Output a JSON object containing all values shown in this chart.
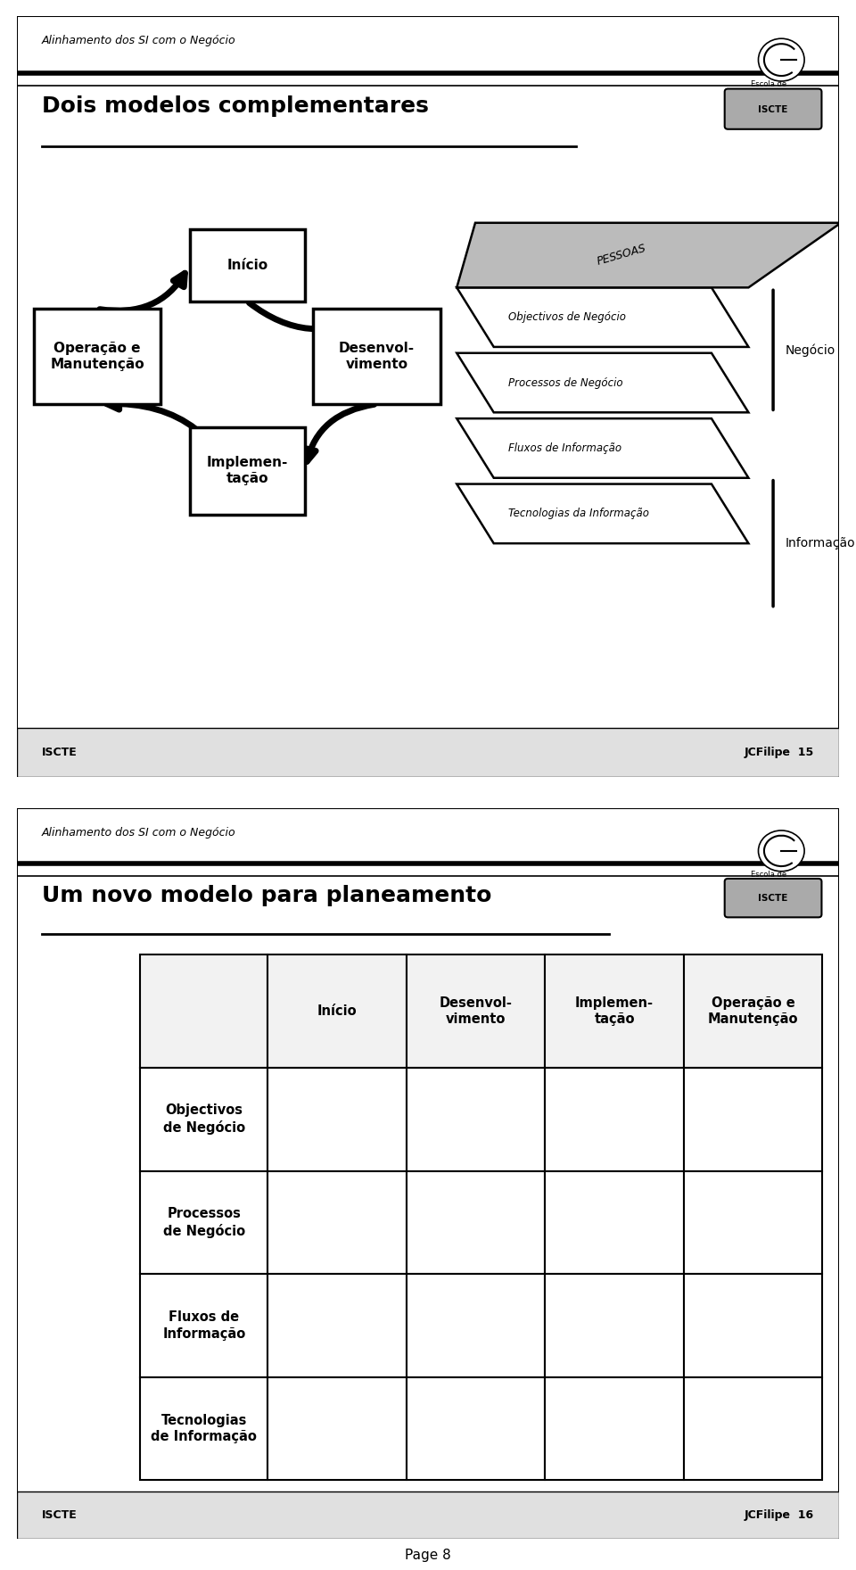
{
  "slide1": {
    "subtitle": "Alinhamento dos SI com o Negócio",
    "title": "Dois modelos complementares",
    "footer_left": "ISCTE",
    "footer_right": "JCFilipe  15"
  },
  "slide2": {
    "subtitle": "Alinhamento dos SI com o Negócio",
    "title": "Um novo modelo para planeamento",
    "footer_left": "ISCTE",
    "footer_right": "JCFilipe  16",
    "col_headers": [
      "Início",
      "Desenvol-\nvimento",
      "Implemen-\ntação",
      "Operação e\nManutenção"
    ],
    "row_headers": [
      "Objectivos\nde Negócio",
      "Processos\nde Negócio",
      "Fluxos de\nInformação",
      "Tecnologias\nde Informação"
    ]
  },
  "page_label": "Page 8",
  "bg_color": "#ffffff"
}
